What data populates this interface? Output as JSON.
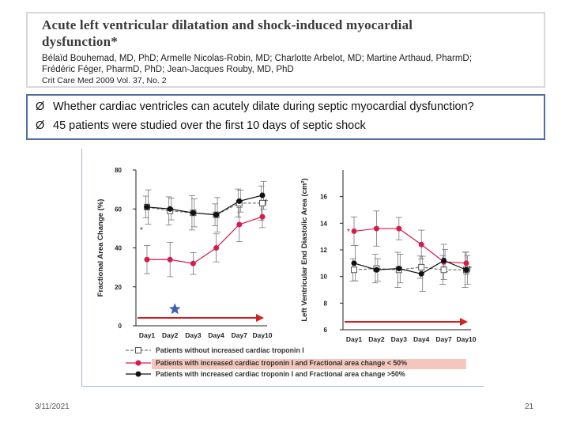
{
  "paper": {
    "title_line1": "Acute left ventricular dilatation and shock-induced myocardial",
    "title_line2": "dysfunction*",
    "authors_line1": "Bélaïd Bouhemad, MD, PhD; Armelle Nicolas-Robin, MD; Charlotte Arbelot, MD; Martine Arthaud, PharmD;",
    "authors_line2": "Frédéric Féger, PharmD, PhD; Jean-Jacques Rouby, MD, PhD",
    "citation": "Crit Care Med 2009 Vol. 37, No. 2"
  },
  "bullets": [
    "Whether cardiac ventricles can acutely dilate during septic myocardial dysfunction?",
    "45 patients were studied over the first 10 days of septic shock"
  ],
  "bullet_glyph": "Ø",
  "footer": {
    "date": "3/11/2021",
    "page": "21"
  },
  "chart_data": [
    {
      "type": "line",
      "ylabel": "Fractional Area Change (%)",
      "xlabel": "",
      "categories": [
        "Day1",
        "Day2",
        "Day3",
        "Day4",
        "Day7",
        "Day10"
      ],
      "ylim": [
        0,
        80
      ],
      "yticks": [
        "0",
        "20",
        "40",
        "60",
        "80"
      ],
      "series": [
        {
          "name": "Patients without increased cardiac troponin I",
          "values": [
            61,
            59,
            58,
            57,
            63,
            63
          ],
          "color": "#777777",
          "marker": "square-open"
        },
        {
          "name": "Patients with increased cardiac troponin I and Fractional area change < 50%",
          "values": [
            34,
            34,
            32,
            40,
            52,
            56
          ],
          "color": "#d81b4a",
          "marker": "circle"
        },
        {
          "name": "Patients with increased cardiac troponin I and Fractional area change ≥50%",
          "values": [
            61,
            60,
            58,
            57,
            64,
            67
          ],
          "color": "#111111",
          "marker": "circle"
        }
      ],
      "annotations": [
        "*",
        "†"
      ],
      "star_marker_day": "Day2"
    },
    {
      "type": "line",
      "ylabel": "Left Ventricular End Diastolic Area (cm²)",
      "xlabel": "",
      "categories": [
        "Day1",
        "Day2",
        "Day3",
        "Day4",
        "Day7",
        "Day10"
      ],
      "ylim": [
        6,
        18
      ],
      "yticks": [
        "6",
        "8",
        "10",
        "12",
        "14",
        "16"
      ],
      "series": [
        {
          "name": "Patients without increased cardiac troponin I",
          "values": [
            10.5,
            10.6,
            10.5,
            10.7,
            10.5,
            10.5
          ],
          "color": "#777777",
          "marker": "square-open"
        },
        {
          "name": "Patients with increased cardiac troponin I and Fractional area change < 50%",
          "values": [
            13.4,
            13.6,
            13.6,
            12.4,
            11.1,
            11.0
          ],
          "color": "#d81b4a",
          "marker": "circle"
        },
        {
          "name": "Patients with increased cardiac troponin I and Fractional area change ≥50%",
          "values": [
            11.0,
            10.5,
            10.6,
            10.2,
            11.2,
            10.5
          ],
          "color": "#111111",
          "marker": "circle"
        }
      ],
      "annotations": [
        "*",
        "†"
      ]
    }
  ],
  "legend": [
    "Patients without increased cardiac troponin I",
    "Patients with increased cardiac troponin I and Fractional area change < 50%",
    "Patients with increased cardiac troponin I and Fractional area change >50%"
  ]
}
